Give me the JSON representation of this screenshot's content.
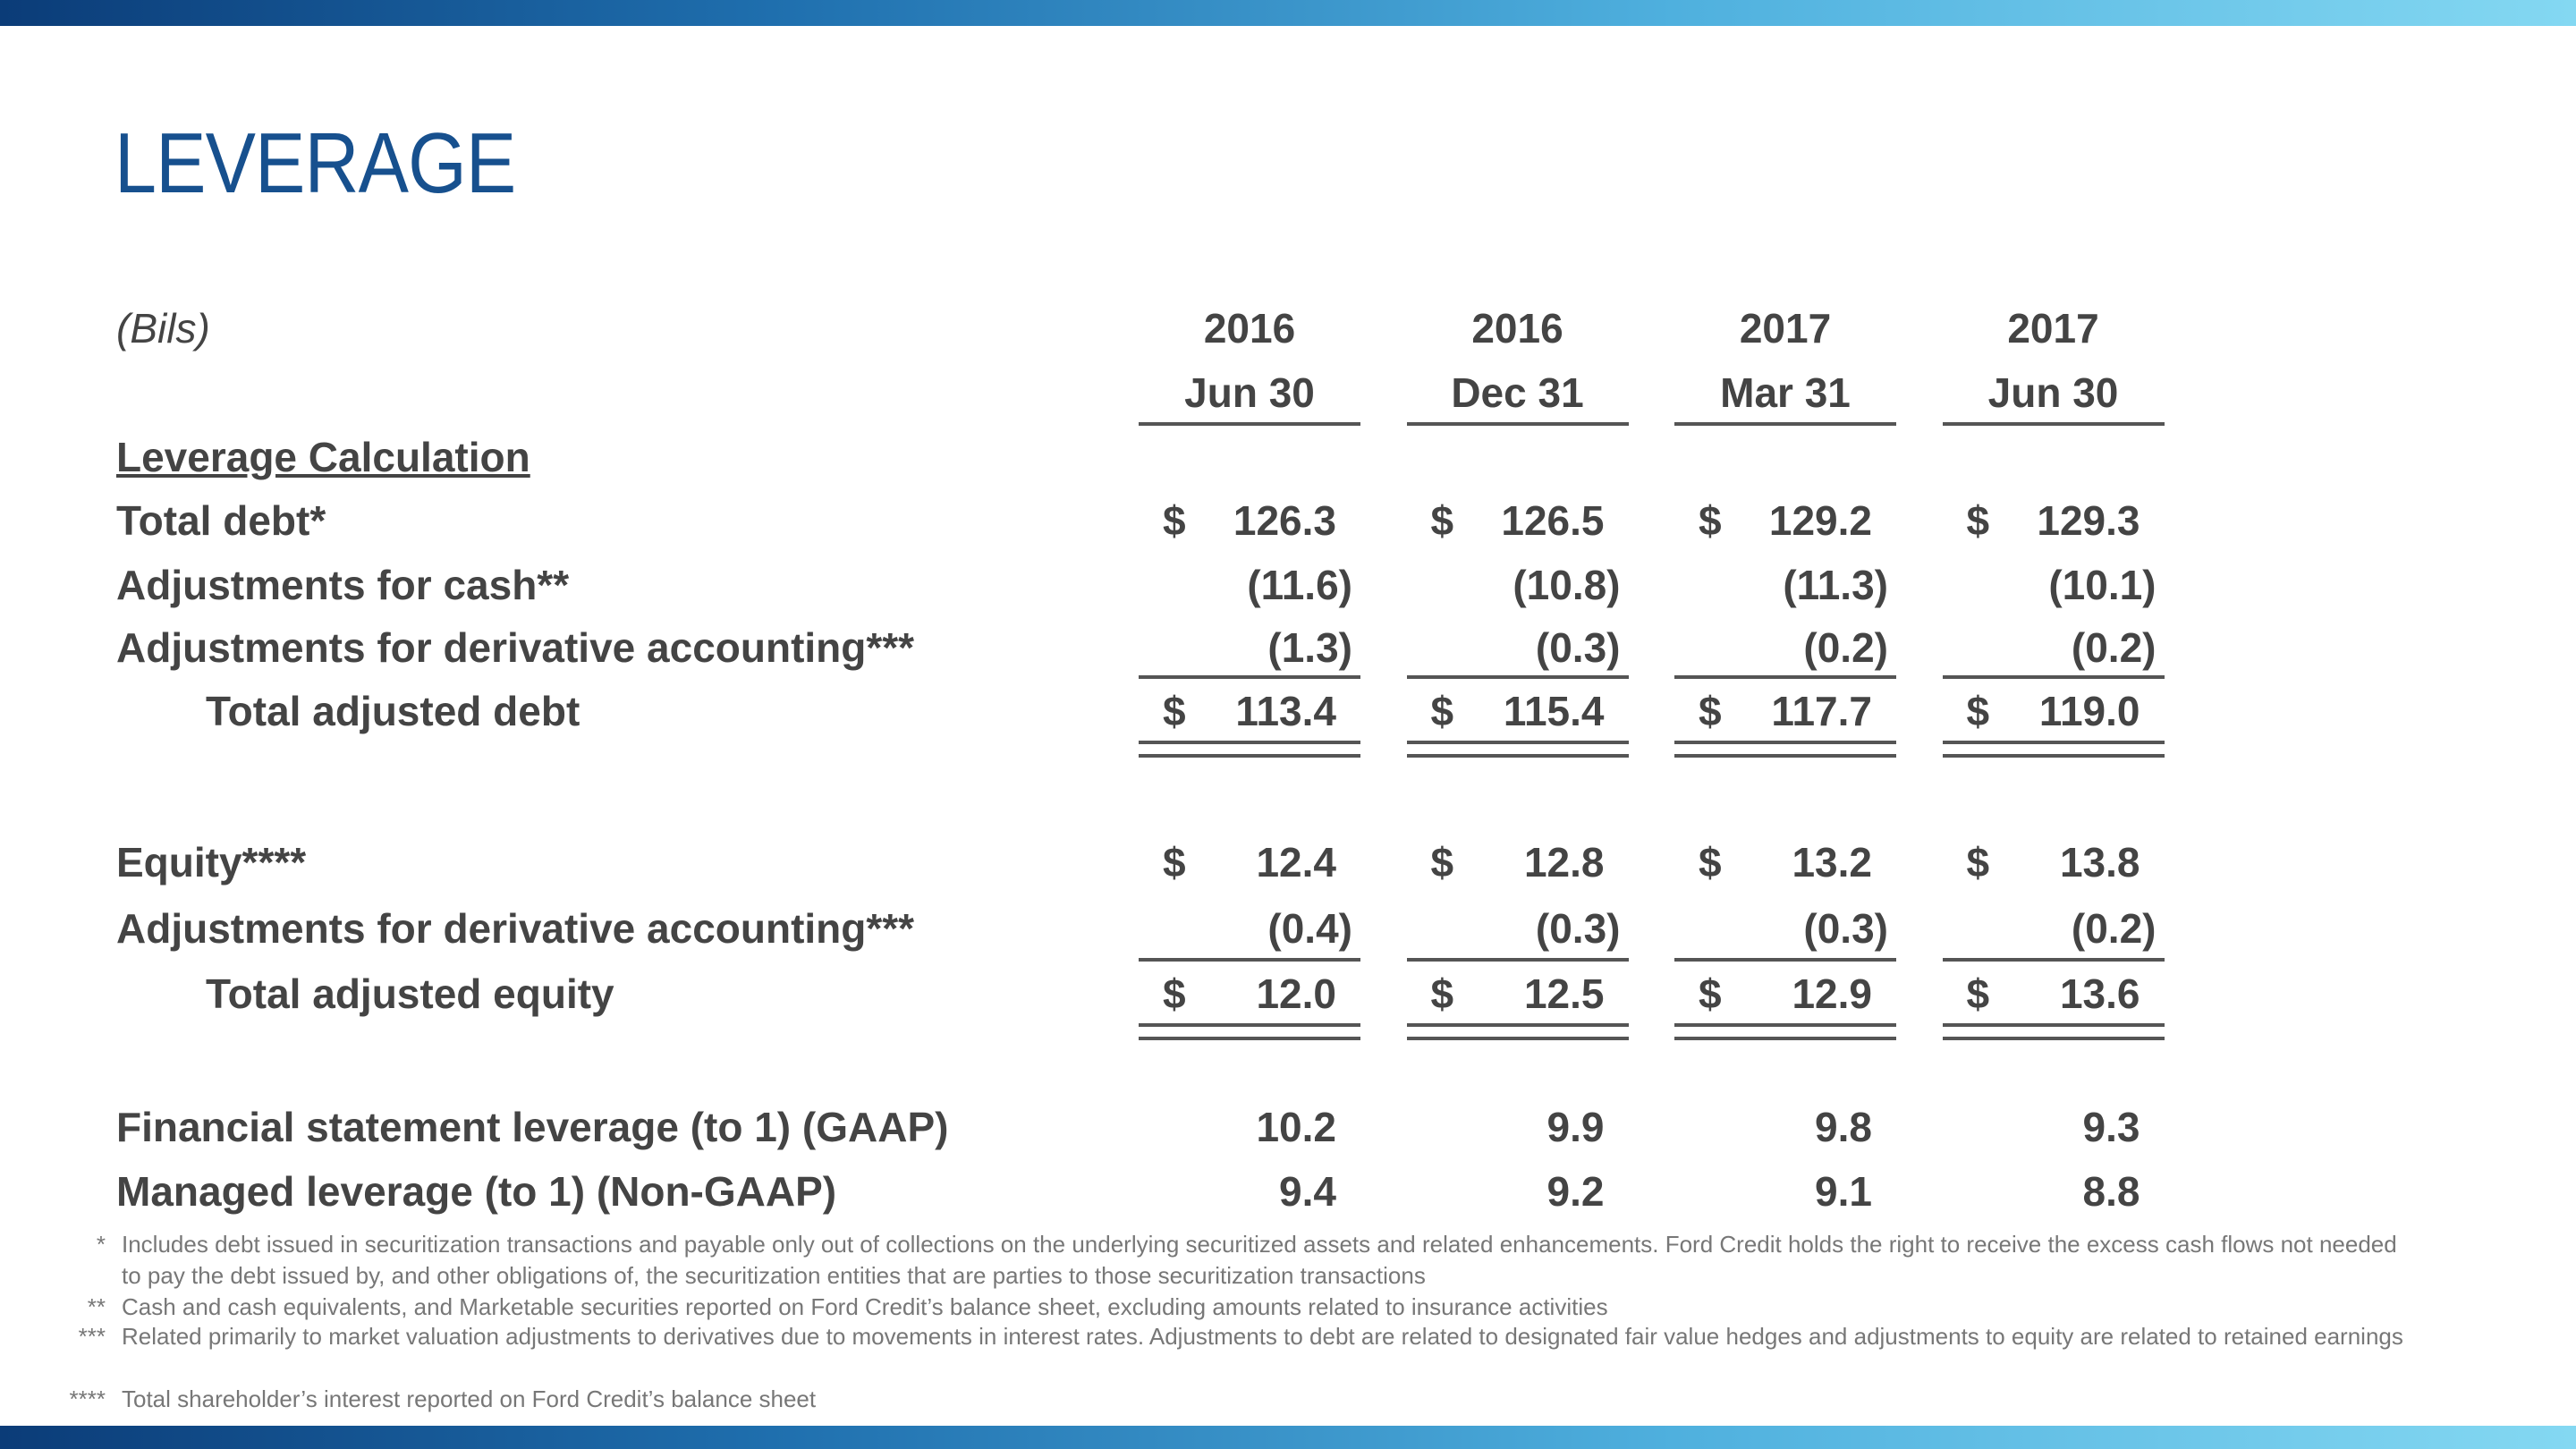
{
  "header": {
    "title": "LEVERAGE"
  },
  "table": {
    "unit": "(Bils)",
    "columns": [
      {
        "year": "2016",
        "date": "Jun 30"
      },
      {
        "year": "2016",
        "date": "Dec 31"
      },
      {
        "year": "2017",
        "date": "Mar 31"
      },
      {
        "year": "2017",
        "date": "Jun 30"
      }
    ],
    "sections": [
      {
        "heading": "Leverage Calculation",
        "rows": [
          {
            "label": "Total debt*",
            "cells": [
              {
                "currency": "$",
                "amount": "126.3"
              },
              {
                "currency": "$",
                "amount": "126.5"
              },
              {
                "currency": "$",
                "amount": "129.2"
              },
              {
                "currency": "$",
                "amount": "129.3"
              }
            ]
          },
          {
            "label": "Adjustments for cash**",
            "cells": [
              "(11.6)",
              "(10.8)",
              "(11.3)",
              "(10.1)"
            ]
          },
          {
            "label": "Adjustments for derivative accounting***",
            "cells": [
              "(1.3)",
              "(0.3)",
              "(0.2)",
              "(0.2)"
            ]
          }
        ],
        "total": {
          "label": "Total adjusted debt",
          "cells": [
            {
              "currency": "$",
              "amount": "113.4"
            },
            {
              "currency": "$",
              "amount": "115.4"
            },
            {
              "currency": "$",
              "amount": "117.7"
            },
            {
              "currency": "$",
              "amount": "119.0"
            }
          ]
        }
      },
      {
        "rows": [
          {
            "label": "Equity****",
            "cells": [
              {
                "currency": "$",
                "amount": "12.4"
              },
              {
                "currency": "$",
                "amount": "12.8"
              },
              {
                "currency": "$",
                "amount": "13.2"
              },
              {
                "currency": "$",
                "amount": "13.8"
              }
            ]
          },
          {
            "label": "Adjustments for derivative accounting***",
            "cells": [
              "(0.4)",
              "(0.3)",
              "(0.3)",
              "(0.2)"
            ]
          }
        ],
        "total": {
          "label": "Total adjusted equity",
          "cells": [
            {
              "currency": "$",
              "amount": "12.0"
            },
            {
              "currency": "$",
              "amount": "12.5"
            },
            {
              "currency": "$",
              "amount": "12.9"
            },
            {
              "currency": "$",
              "amount": "13.6"
            }
          ]
        }
      },
      {
        "rows": [
          {
            "label": "Financial statement leverage (to 1) (GAAP)",
            "cells": [
              "10.2",
              "9.9",
              "9.8",
              "9.3"
            ]
          },
          {
            "label": "Managed leverage (to 1) (Non-GAAP)",
            "cells": [
              "9.4",
              "9.2",
              "9.1",
              "8.8"
            ]
          }
        ]
      }
    ]
  },
  "footnotes": [
    {
      "marker": "*",
      "text": "Includes debt issued in securitization transactions and payable only out of collections on the underlying securitized assets and related enhancements.  Ford Credit holds the right to receive the excess cash flows not needed to pay the debt issued by, and other obligations of, the securitization entities that are parties to those securitization transactions"
    },
    {
      "marker": "**",
      "text": "Cash and cash equivalents, and Marketable securities reported on Ford Credit’s balance sheet, excluding amounts related to insurance activities"
    },
    {
      "marker": "***",
      "text": "Related primarily to market valuation adjustments to derivatives due to movements in interest rates.  Adjustments to debt are related to designated fair value hedges and adjustments to equity are related to retained earnings"
    },
    {
      "marker": "****",
      "text": "Total shareholder’s interest reported on Ford Credit’s balance sheet"
    }
  ]
}
